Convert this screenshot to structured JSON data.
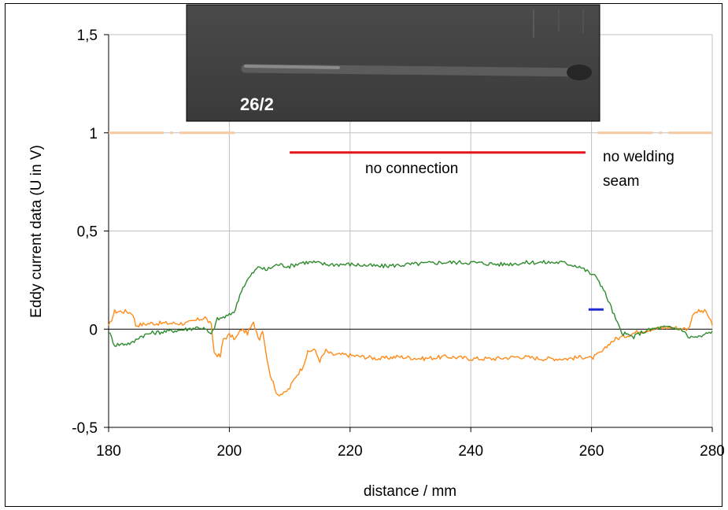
{
  "chart_data": {
    "type": "line",
    "xlabel": "distance / mm",
    "ylabel": "Eddy current data (U in V)",
    "xlim": [
      180,
      280
    ],
    "ylim": [
      -0.5,
      1.5
    ],
    "x_ticks": [
      "180",
      "200",
      "220",
      "240",
      "260",
      "280"
    ],
    "y_ticks": [
      "-0,5",
      "0",
      "0,5",
      "1",
      "1,5"
    ],
    "x_tick_values": [
      180,
      200,
      220,
      240,
      260,
      280
    ],
    "y_tick_values": [
      -0.5,
      0,
      0.5,
      1,
      1.5
    ],
    "grid": true,
    "inset_image": {
      "label": "26/2"
    },
    "annotations": {
      "no_connection": "no connection",
      "no_welding_line1": "no welding",
      "no_welding_line2": "seam"
    },
    "series": [
      {
        "color": "#ff8c1a",
        "points": [
          [
            180,
            0.01
          ],
          [
            181,
            0.09
          ],
          [
            183,
            0.09
          ],
          [
            184,
            0.08
          ],
          [
            184.5,
            0.02
          ],
          [
            187,
            0.03
          ],
          [
            190,
            0.03
          ],
          [
            193,
            0.03
          ],
          [
            195,
            0.05
          ],
          [
            196,
            0.06
          ],
          [
            197,
            0.02
          ],
          [
            197.5,
            -0.12
          ],
          [
            198.5,
            -0.14
          ],
          [
            199,
            -0.05
          ],
          [
            200,
            -0.03
          ],
          [
            201,
            -0.05
          ],
          [
            202,
            0.0
          ],
          [
            203,
            -0.02
          ],
          [
            204,
            0.03
          ],
          [
            205,
            -0.05
          ],
          [
            205.5,
            0.0
          ],
          [
            206,
            -0.1
          ],
          [
            206.5,
            -0.2
          ],
          [
            207.5,
            -0.3
          ],
          [
            208,
            -0.33
          ],
          [
            209,
            -0.33
          ],
          [
            210,
            -0.3
          ],
          [
            211,
            -0.24
          ],
          [
            212,
            -0.2
          ],
          [
            213,
            -0.12
          ],
          [
            214,
            -0.1
          ],
          [
            215,
            -0.16
          ],
          [
            216,
            -0.11
          ],
          [
            217,
            -0.13
          ],
          [
            219,
            -0.13
          ],
          [
            222,
            -0.14
          ],
          [
            225,
            -0.15
          ],
          [
            228,
            -0.14
          ],
          [
            232,
            -0.15
          ],
          [
            236,
            -0.14
          ],
          [
            240,
            -0.15
          ],
          [
            244,
            -0.15
          ],
          [
            248,
            -0.14
          ],
          [
            252,
            -0.15
          ],
          [
            256,
            -0.15
          ],
          [
            259,
            -0.14
          ],
          [
            260,
            -0.15
          ],
          [
            261,
            -0.13
          ],
          [
            262,
            -0.11
          ],
          [
            263,
            -0.07
          ],
          [
            264,
            -0.05
          ],
          [
            265,
            -0.04
          ],
          [
            266,
            -0.03
          ],
          [
            268,
            -0.01
          ],
          [
            270,
            0.0
          ],
          [
            273,
            0.01
          ],
          [
            276,
            0.0
          ],
          [
            277,
            0.09
          ],
          [
            279,
            0.09
          ],
          [
            280,
            0.02
          ]
        ]
      },
      {
        "color": "#2e8b2e",
        "points": [
          [
            180,
            -0.01
          ],
          [
            181,
            -0.08
          ],
          [
            184,
            -0.07
          ],
          [
            185,
            -0.04
          ],
          [
            187,
            -0.02
          ],
          [
            190,
            -0.01
          ],
          [
            193,
            0.0
          ],
          [
            195,
            0.01
          ],
          [
            196,
            0.0
          ],
          [
            197,
            -0.03
          ],
          [
            198,
            0.05
          ],
          [
            199,
            0.06
          ],
          [
            200,
            0.07
          ],
          [
            201,
            0.1
          ],
          [
            202,
            0.2
          ],
          [
            203,
            0.25
          ],
          [
            204,
            0.29
          ],
          [
            205,
            0.32
          ],
          [
            206,
            0.3
          ],
          [
            208,
            0.33
          ],
          [
            210,
            0.32
          ],
          [
            212,
            0.34
          ],
          [
            214,
            0.34
          ],
          [
            216,
            0.33
          ],
          [
            220,
            0.33
          ],
          [
            225,
            0.32
          ],
          [
            230,
            0.33
          ],
          [
            235,
            0.34
          ],
          [
            240,
            0.34
          ],
          [
            245,
            0.33
          ],
          [
            250,
            0.34
          ],
          [
            255,
            0.34
          ],
          [
            258,
            0.32
          ],
          [
            260,
            0.28
          ],
          [
            261,
            0.26
          ],
          [
            262,
            0.2
          ],
          [
            263,
            0.13
          ],
          [
            264,
            0.05
          ],
          [
            265,
            -0.02
          ],
          [
            266,
            -0.03
          ],
          [
            267,
            -0.04
          ],
          [
            268,
            -0.02
          ],
          [
            270,
            0.0
          ],
          [
            272,
            0.01
          ],
          [
            275,
            0.0
          ],
          [
            276,
            -0.04
          ],
          [
            278,
            -0.04
          ],
          [
            280,
            -0.01
          ]
        ]
      },
      {
        "color": "#e8141c",
        "points": [
          [
            210,
            0.9
          ],
          [
            259,
            0.9
          ]
        ]
      },
      {
        "color": "#1f2ecf",
        "points": [
          [
            259.5,
            0.1
          ],
          [
            262,
            0.1
          ]
        ]
      },
      {
        "color": "#f5c8a0",
        "dashed": true,
        "points": [
          [
            180,
            1.0
          ],
          [
            201,
            1.0
          ]
        ]
      },
      {
        "color": "#f5c8a0",
        "dashed": true,
        "points": [
          [
            261,
            1.0
          ],
          [
            280,
            1.0
          ]
        ]
      }
    ]
  }
}
